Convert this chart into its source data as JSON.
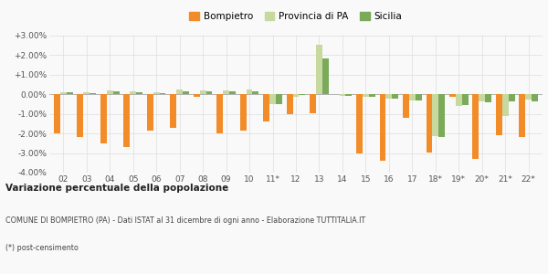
{
  "categories": [
    "02",
    "03",
    "04",
    "05",
    "06",
    "07",
    "08",
    "09",
    "10",
    "11*",
    "12",
    "13",
    "14",
    "15",
    "16",
    "17",
    "18*",
    "19*",
    "20*",
    "21*",
    "22*"
  ],
  "bompietro": [
    -2.0,
    -2.2,
    -2.5,
    -2.7,
    -1.85,
    -1.7,
    -0.15,
    -2.0,
    -1.85,
    -1.4,
    -1.0,
    -0.95,
    0.0,
    -3.0,
    -3.4,
    -1.2,
    -2.95,
    -0.15,
    -3.3,
    -2.1,
    -2.2
  ],
  "provincia": [
    0.1,
    0.1,
    0.2,
    0.15,
    0.1,
    0.25,
    0.2,
    0.2,
    0.25,
    -0.5,
    -0.15,
    2.55,
    -0.1,
    -0.15,
    -0.2,
    -0.3,
    -2.15,
    -0.6,
    -0.35,
    -1.1,
    -0.25
  ],
  "sicilia": [
    0.1,
    0.05,
    0.15,
    0.1,
    0.05,
    0.15,
    0.15,
    0.15,
    0.15,
    -0.5,
    -0.05,
    1.85,
    -0.1,
    -0.15,
    -0.2,
    -0.3,
    -2.2,
    -0.55,
    -0.4,
    -0.35,
    -0.35
  ],
  "color_bompietro": "#f28c28",
  "color_provincia": "#c8d9a0",
  "color_sicilia": "#7aaa5a",
  "title_bold": "Variazione percentuale della popolazione",
  "subtitle": "COMUNE DI BOMPIETRO (PA) - Dati ISTAT al 31 dicembre di ogni anno - Elaborazione TUTTITALIA.IT",
  "footnote": "(*) post-censimento",
  "ylim": [
    -4.0,
    3.0
  ],
  "yticks": [
    -4.0,
    -3.0,
    -2.0,
    -1.0,
    0.0,
    1.0,
    2.0,
    3.0
  ],
  "ytick_labels": [
    "-4.00%",
    "-3.00%",
    "-2.00%",
    "-1.00%",
    "0.00%",
    "+1.00%",
    "+2.00%",
    "+3.00%"
  ],
  "bg_color": "#f9f9f9",
  "legend_labels": [
    "Bompietro",
    "Provincia di PA",
    "Sicilia"
  ],
  "bar_width": 0.27
}
